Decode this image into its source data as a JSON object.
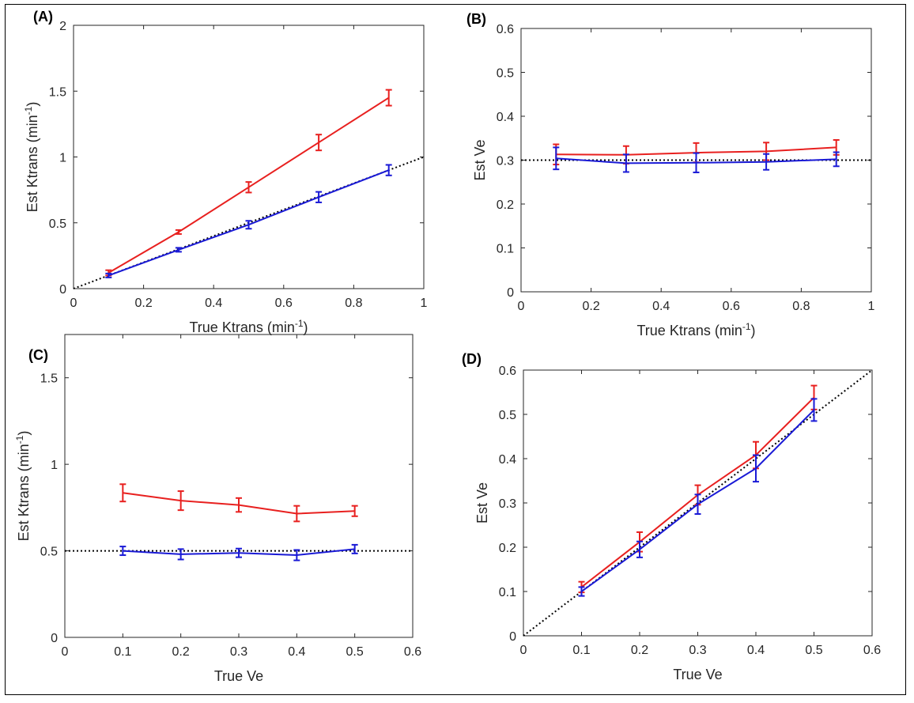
{
  "figure": {
    "colors": {
      "series_red": "#e8201f",
      "series_blue": "#1a1ad6",
      "reference": "#000000",
      "axis": "#262626"
    }
  },
  "chart_data": [
    {
      "panel": "(A)",
      "type": "line",
      "xlabel": "True Ktrans (min",
      "xlabel_sup": "-1",
      "xlabel_tail": ")",
      "ylabel": "Est Ktrans (min",
      "ylabel_sup": "-1",
      "ylabel_tail": ")",
      "xlim": [
        0,
        1
      ],
      "ylim": [
        0,
        2
      ],
      "xticks": [
        0,
        0.2,
        0.4,
        0.6,
        0.8,
        1
      ],
      "yticks": [
        0,
        0.5,
        1,
        1.5,
        2
      ],
      "reference": {
        "style": "dotted",
        "points": [
          [
            0,
            0
          ],
          [
            1,
            1
          ]
        ]
      },
      "series": [
        {
          "name": "red",
          "x": [
            0.1,
            0.3,
            0.5,
            0.7,
            0.9
          ],
          "values": [
            0.12,
            0.43,
            0.77,
            1.11,
            1.45
          ],
          "err": [
            0.02,
            0.015,
            0.04,
            0.06,
            0.06
          ]
        },
        {
          "name": "blue",
          "x": [
            0.1,
            0.3,
            0.5,
            0.7,
            0.9
          ],
          "values": [
            0.1,
            0.295,
            0.485,
            0.695,
            0.9
          ],
          "err": [
            0.015,
            0.015,
            0.03,
            0.04,
            0.04
          ]
        }
      ]
    },
    {
      "panel": "(B)",
      "type": "line",
      "xlabel": "True Ktrans (min",
      "xlabel_sup": "-1",
      "xlabel_tail": ")",
      "ylabel": "Est Ve",
      "ylabel_sup": "",
      "ylabel_tail": "",
      "xlim": [
        0,
        1
      ],
      "ylim": [
        0,
        0.6
      ],
      "xticks": [
        0,
        0.2,
        0.4,
        0.6,
        0.8,
        1
      ],
      "yticks": [
        0,
        0.1,
        0.2,
        0.3,
        0.4,
        0.5,
        0.6
      ],
      "reference": {
        "style": "dotted",
        "points": [
          [
            0,
            0.3
          ],
          [
            1,
            0.3
          ]
        ]
      },
      "series": [
        {
          "name": "red",
          "x": [
            0.1,
            0.3,
            0.5,
            0.7,
            0.9
          ],
          "values": [
            0.313,
            0.312,
            0.317,
            0.32,
            0.329
          ],
          "err": [
            0.023,
            0.02,
            0.022,
            0.02,
            0.017
          ]
        },
        {
          "name": "blue",
          "x": [
            0.1,
            0.3,
            0.5,
            0.7,
            0.9
          ],
          "values": [
            0.304,
            0.293,
            0.294,
            0.296,
            0.302
          ],
          "err": [
            0.025,
            0.02,
            0.022,
            0.018,
            0.016
          ]
        }
      ]
    },
    {
      "panel": "(C)",
      "type": "line",
      "xlabel": "True Ve",
      "xlabel_sup": "",
      "xlabel_tail": "",
      "ylabel": "Est Ktrans (min",
      "ylabel_sup": "-1",
      "ylabel_tail": ")",
      "xlim": [
        0,
        0.6
      ],
      "ylim": [
        0,
        1.75
      ],
      "xticks": [
        0,
        0.1,
        0.2,
        0.3,
        0.4,
        0.5,
        0.6
      ],
      "yticks": [
        0,
        0.5,
        1,
        1.5
      ],
      "reference": {
        "style": "dotted",
        "points": [
          [
            0,
            0.5
          ],
          [
            0.6,
            0.5
          ]
        ]
      },
      "series": [
        {
          "name": "red",
          "x": [
            0.1,
            0.2,
            0.3,
            0.4,
            0.5
          ],
          "values": [
            0.835,
            0.79,
            0.765,
            0.715,
            0.73
          ],
          "err": [
            0.05,
            0.055,
            0.04,
            0.045,
            0.03
          ]
        },
        {
          "name": "blue",
          "x": [
            0.1,
            0.2,
            0.3,
            0.4,
            0.5
          ],
          "values": [
            0.5,
            0.48,
            0.488,
            0.475,
            0.51
          ],
          "err": [
            0.025,
            0.03,
            0.025,
            0.03,
            0.025
          ]
        }
      ]
    },
    {
      "panel": "(D)",
      "type": "line",
      "xlabel": "True Ve",
      "xlabel_sup": "",
      "xlabel_tail": "",
      "ylabel": "Est Ve",
      "ylabel_sup": "",
      "ylabel_tail": "",
      "xlim": [
        0,
        0.6
      ],
      "ylim": [
        0,
        0.6
      ],
      "xticks": [
        0,
        0.1,
        0.2,
        0.3,
        0.4,
        0.5,
        0.6
      ],
      "yticks": [
        0,
        0.1,
        0.2,
        0.3,
        0.4,
        0.5,
        0.6
      ],
      "reference": {
        "style": "dotted",
        "points": [
          [
            0,
            0
          ],
          [
            0.6,
            0.6
          ]
        ]
      },
      "series": [
        {
          "name": "red",
          "x": [
            0.1,
            0.2,
            0.3,
            0.4,
            0.5
          ],
          "values": [
            0.11,
            0.212,
            0.318,
            0.408,
            0.538
          ],
          "err": [
            0.012,
            0.022,
            0.022,
            0.03,
            0.027
          ]
        },
        {
          "name": "blue",
          "x": [
            0.1,
            0.2,
            0.3,
            0.4,
            0.5
          ],
          "values": [
            0.1,
            0.195,
            0.297,
            0.378,
            0.51
          ],
          "err": [
            0.01,
            0.018,
            0.022,
            0.03,
            0.025
          ]
        }
      ]
    }
  ]
}
